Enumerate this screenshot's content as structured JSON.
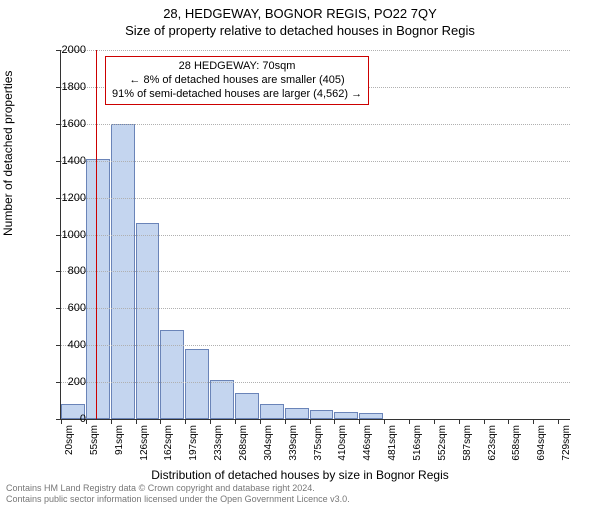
{
  "titles": {
    "main": "28, HEDGEWAY, BOGNOR REGIS, PO22 7QY",
    "sub": "Size of property relative to detached houses in Bognor Regis"
  },
  "chart": {
    "type": "histogram",
    "bar_color": "#c4d5ef",
    "bar_border": "#6a84b8",
    "grid_color": "#b0b0b0",
    "background": "#ffffff",
    "ref_line_color": "#cc0000",
    "ref_line_x_sqm": 70,
    "x_min": 20,
    "x_max": 747,
    "bin_width_sqm": 35.5,
    "y_min": 0,
    "y_max": 2000,
    "y_ticks": [
      0,
      200,
      400,
      600,
      800,
      1000,
      1200,
      1400,
      1600,
      1800,
      2000
    ],
    "x_tick_labels": [
      "20sqm",
      "55sqm",
      "91sqm",
      "126sqm",
      "162sqm",
      "197sqm",
      "233sqm",
      "268sqm",
      "304sqm",
      "339sqm",
      "375sqm",
      "410sqm",
      "446sqm",
      "481sqm",
      "516sqm",
      "552sqm",
      "587sqm",
      "623sqm",
      "658sqm",
      "694sqm",
      "729sqm"
    ],
    "bars": [
      80,
      1410,
      1600,
      1060,
      480,
      380,
      210,
      140,
      80,
      60,
      50,
      40,
      30,
      0,
      0,
      0,
      0,
      0,
      0,
      0,
      0
    ],
    "ylabel": "Number of detached properties",
    "xlabel": "Distribution of detached houses by size in Bognor Regis"
  },
  "annotation": {
    "line1": "28 HEDGEWAY: 70sqm",
    "line2": "← 8% of detached houses are smaller (405)",
    "line3": "91% of semi-detached houses are larger (4,562) →"
  },
  "footer": {
    "line1": "Contains HM Land Registry data © Crown copyright and database right 2024.",
    "line2": "Contains public sector information licensed under the Open Government Licence v3.0."
  }
}
